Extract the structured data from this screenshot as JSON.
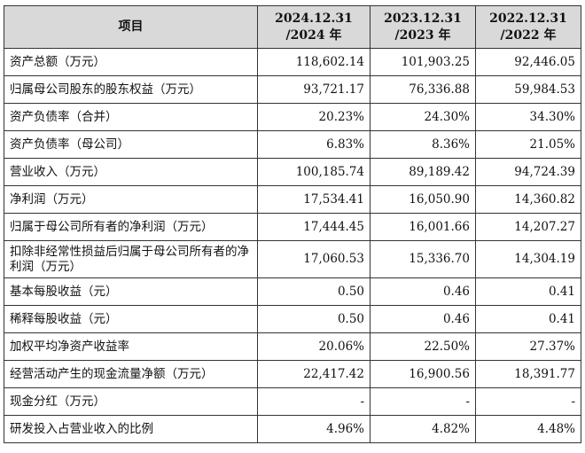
{
  "header": {
    "item": "项目",
    "cols": [
      {
        "line1": "2024.12.31",
        "line2": "/2024 年"
      },
      {
        "line1": "2023.12.31",
        "line2": "/2023 年"
      },
      {
        "line1": "2022.12.31",
        "line2": "/2022 年"
      }
    ]
  },
  "rows": [
    {
      "label": "资产总额（万元）",
      "v": [
        "118,602.14",
        "101,903.25",
        "92,446.05"
      ]
    },
    {
      "label": "归属母公司股东的股东权益（万元）",
      "v": [
        "93,721.17",
        "76,336.88",
        "59,984.53"
      ]
    },
    {
      "label": "资产负债率（合并）",
      "v": [
        "20.23%",
        "24.30%",
        "34.30%"
      ]
    },
    {
      "label": "资产负债率（母公司）",
      "v": [
        "6.83%",
        "8.36%",
        "21.05%"
      ]
    },
    {
      "label": "营业收入（万元）",
      "v": [
        "100,185.74",
        "89,189.42",
        "94,724.39"
      ]
    },
    {
      "label": "净利润（万元）",
      "v": [
        "17,534.41",
        "16,050.90",
        "14,360.82"
      ]
    },
    {
      "label": "归属于母公司所有者的净利润（万元）",
      "v": [
        "17,444.45",
        "16,001.66",
        "14,207.27"
      ]
    },
    {
      "label": "扣除非经常性损益后归属于母公司所有者的净利润（万元）",
      "v": [
        "17,060.53",
        "15,336.70",
        "14,304.19"
      ]
    },
    {
      "label": "基本每股收益（元）",
      "v": [
        "0.50",
        "0.46",
        "0.41"
      ]
    },
    {
      "label": "稀释每股收益（元）",
      "v": [
        "0.50",
        "0.46",
        "0.41"
      ]
    },
    {
      "label": "加权平均净资产收益率",
      "v": [
        "20.06%",
        "22.50%",
        "27.37%"
      ]
    },
    {
      "label": "经营活动产生的现金流量净额（万元）",
      "v": [
        "22,417.42",
        "16,900.56",
        "18,391.77"
      ]
    },
    {
      "label": "现金分红（万元）",
      "v": [
        "-",
        "-",
        "-"
      ]
    },
    {
      "label": "研发投入占营业收入的比例",
      "v": [
        "4.96%",
        "4.82%",
        "4.48%"
      ]
    }
  ]
}
